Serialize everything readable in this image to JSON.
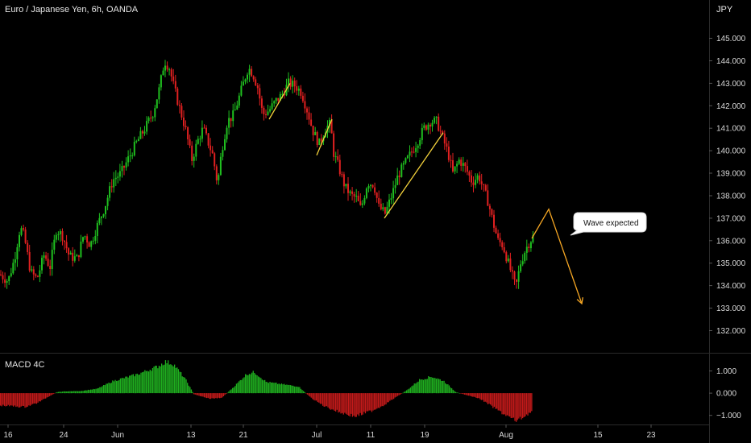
{
  "header": {
    "title": "Euro / Japanese Yen, 6h, OANDA",
    "currency": "JPY"
  },
  "indicator": {
    "name": "MACD 4C"
  },
  "callout": {
    "text": "Wave expected"
  },
  "colors": {
    "background": "#000000",
    "up": "#1fbf1f",
    "down": "#e02020",
    "annotation_line": "#f4d23c",
    "projection": "#f5a623",
    "macd_pos": "#1fae1f",
    "macd_neg": "#c41a1a"
  },
  "chart_data": [
    {
      "type": "candlestick",
      "title": "Euro / Japanese Yen, 6h, OANDA",
      "yunit": "JPY",
      "ylim": [
        131.3,
        145.7
      ],
      "x_ticks": [
        "16",
        "24",
        "Jun",
        "13",
        "21",
        "Jul",
        "11",
        "19",
        "Aug",
        "15",
        "23"
      ],
      "y_ticks": [
        "132.000",
        "133.000",
        "134.000",
        "135.000",
        "136.000",
        "137.000",
        "138.000",
        "139.000",
        "140.000",
        "141.000",
        "142.000",
        "143.000",
        "144.000",
        "145.000"
      ],
      "path_points": [
        [
          0,
          134.5
        ],
        [
          10,
          134.2
        ],
        [
          18,
          135.2
        ],
        [
          25,
          136.6
        ],
        [
          30,
          136.2
        ],
        [
          38,
          134.6
        ],
        [
          46,
          134.3
        ],
        [
          55,
          135.4
        ],
        [
          62,
          134.8
        ],
        [
          70,
          136.5
        ],
        [
          78,
          136.2
        ],
        [
          86,
          135.3
        ],
        [
          96,
          135.2
        ],
        [
          104,
          136.3
        ],
        [
          112,
          135.8
        ],
        [
          120,
          136.6
        ],
        [
          130,
          137.5
        ],
        [
          140,
          138.7
        ],
        [
          150,
          139.0
        ],
        [
          160,
          139.7
        ],
        [
          170,
          140.4
        ],
        [
          180,
          141.0
        ],
        [
          190,
          141.7
        ],
        [
          198,
          142.8
        ],
        [
          204,
          144.0
        ],
        [
          210,
          143.7
        ],
        [
          216,
          142.8
        ],
        [
          222,
          142.0
        ],
        [
          230,
          141.0
        ],
        [
          238,
          139.6
        ],
        [
          246,
          140.5
        ],
        [
          252,
          141.0
        ],
        [
          258,
          140.4
        ],
        [
          264,
          139.8
        ],
        [
          270,
          138.5
        ],
        [
          275,
          140.0
        ],
        [
          282,
          141.3
        ],
        [
          290,
          141.6
        ],
        [
          296,
          142.3
        ],
        [
          302,
          143.0
        ],
        [
          308,
          143.7
        ],
        [
          314,
          143.4
        ],
        [
          320,
          142.8
        ],
        [
          326,
          141.6
        ],
        [
          334,
          141.8
        ],
        [
          342,
          142.2
        ],
        [
          350,
          142.5
        ],
        [
          358,
          143.0
        ],
        [
          366,
          142.9
        ],
        [
          374,
          142.6
        ],
        [
          382,
          141.7
        ],
        [
          388,
          140.9
        ],
        [
          396,
          140.3
        ],
        [
          404,
          141.0
        ],
        [
          410,
          141.2
        ],
        [
          414,
          139.9
        ],
        [
          420,
          139.3
        ],
        [
          428,
          138.4
        ],
        [
          436,
          138.0
        ],
        [
          442,
          137.9
        ],
        [
          448,
          137.4
        ],
        [
          456,
          138.6
        ],
        [
          464,
          138.5
        ],
        [
          470,
          137.5
        ],
        [
          478,
          137.2
        ],
        [
          486,
          138.0
        ],
        [
          494,
          138.9
        ],
        [
          502,
          139.4
        ],
        [
          510,
          139.9
        ],
        [
          518,
          140.4
        ],
        [
          526,
          141.0
        ],
        [
          534,
          141.3
        ],
        [
          542,
          141.3
        ],
        [
          550,
          140.5
        ],
        [
          556,
          139.9
        ],
        [
          562,
          139.0
        ],
        [
          570,
          139.6
        ],
        [
          578,
          139.2
        ],
        [
          586,
          138.6
        ],
        [
          594,
          138.9
        ],
        [
          600,
          138.3
        ],
        [
          606,
          137.7
        ],
        [
          612,
          136.8
        ],
        [
          618,
          136.0
        ],
        [
          624,
          135.8
        ],
        [
          630,
          135.1
        ],
        [
          636,
          134.4
        ],
        [
          640,
          133.9
        ],
        [
          646,
          135.0
        ],
        [
          652,
          135.6
        ],
        [
          658,
          136.0
        ],
        [
          662,
          136.2
        ]
      ],
      "annotations": [
        {
          "type": "trendline",
          "from": [
            334,
            141.4
          ],
          "to": [
            360,
            143.0
          ]
        },
        {
          "type": "trendline",
          "from": [
            393,
            139.8
          ],
          "to": [
            412,
            141.4
          ]
        },
        {
          "type": "trendline",
          "from": [
            477,
            137.0
          ],
          "to": [
            550,
            140.8
          ]
        },
        {
          "type": "projection",
          "points": [
            [
              660,
              136.1
            ],
            [
              681,
              137.4
            ],
            [
              722,
              133.2
            ]
          ]
        }
      ]
    },
    {
      "type": "bar",
      "title": "MACD 4C",
      "ylim": [
        -1.3,
        1.6
      ],
      "y_ticks": [
        "1.000",
        "0.000",
        "−1.000"
      ],
      "profile": [
        [
          0,
          -0.55
        ],
        [
          30,
          -0.62
        ],
        [
          45,
          -0.45
        ],
        [
          60,
          -0.15
        ],
        [
          70,
          0.05
        ],
        [
          80,
          0.08
        ],
        [
          100,
          0.1
        ],
        [
          120,
          0.2
        ],
        [
          140,
          0.55
        ],
        [
          170,
          0.85
        ],
        [
          195,
          1.2
        ],
        [
          205,
          1.42
        ],
        [
          215,
          1.3
        ],
        [
          230,
          0.6
        ],
        [
          240,
          -0.05
        ],
        [
          260,
          -0.25
        ],
        [
          275,
          -0.2
        ],
        [
          290,
          0.3
        ],
        [
          305,
          0.85
        ],
        [
          315,
          0.95
        ],
        [
          330,
          0.5
        ],
        [
          350,
          0.4
        ],
        [
          370,
          0.3
        ],
        [
          385,
          -0.2
        ],
        [
          400,
          -0.55
        ],
        [
          420,
          -0.85
        ],
        [
          440,
          -1.05
        ],
        [
          460,
          -0.8
        ],
        [
          475,
          -0.55
        ],
        [
          490,
          -0.2
        ],
        [
          505,
          0.15
        ],
        [
          520,
          0.6
        ],
        [
          535,
          0.75
        ],
        [
          550,
          0.55
        ],
        [
          565,
          0.05
        ],
        [
          580,
          -0.1
        ],
        [
          595,
          -0.25
        ],
        [
          610,
          -0.6
        ],
        [
          625,
          -0.95
        ],
        [
          640,
          -1.25
        ],
        [
          650,
          -1.05
        ],
        [
          660,
          -0.8
        ]
      ]
    }
  ]
}
